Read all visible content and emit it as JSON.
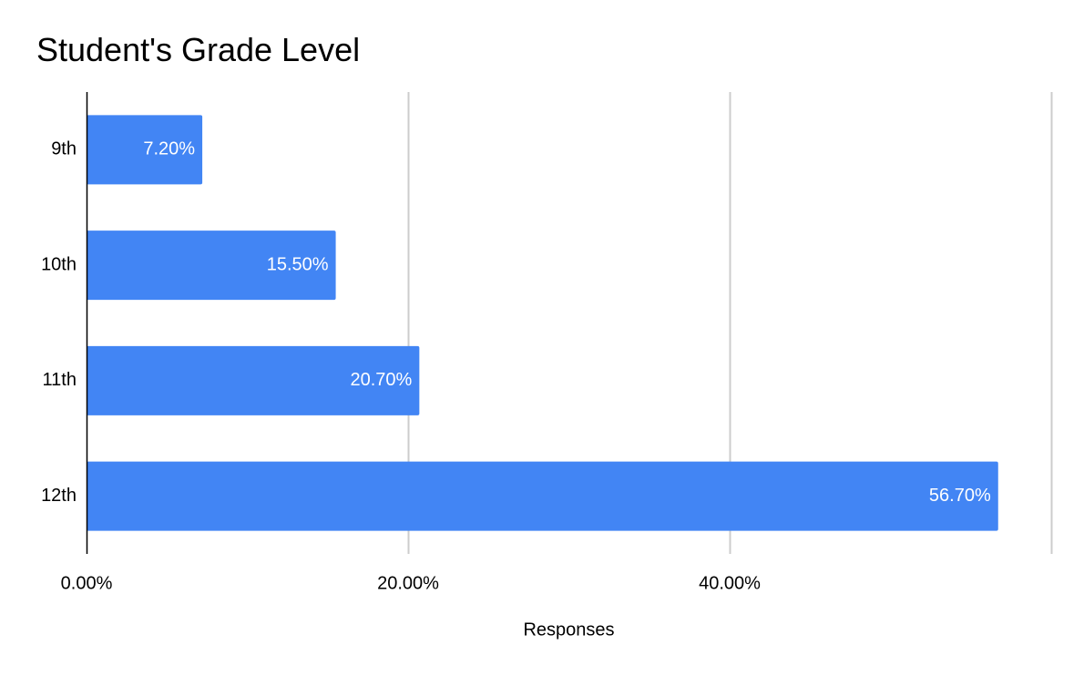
{
  "chart_data": {
    "type": "bar",
    "orientation": "horizontal",
    "title": "Student's Grade Level",
    "xlabel": "Responses",
    "ylabel": "",
    "categories": [
      "9th",
      "10th",
      "11th",
      "12th"
    ],
    "values": [
      7.2,
      15.5,
      20.7,
      56.7
    ],
    "data_labels": [
      "7.20%",
      "15.50%",
      "20.70%",
      "56.70%"
    ],
    "x_ticks": [
      0,
      20,
      40,
      60
    ],
    "x_tick_labels": [
      "0.00%",
      "20.00%",
      "40.00%",
      ""
    ],
    "xlim": [
      0,
      60
    ],
    "grid": true,
    "legend": "none",
    "colors": {
      "bar": "#4285f4",
      "gridline": "#cccccc",
      "axis": "#000000"
    }
  }
}
